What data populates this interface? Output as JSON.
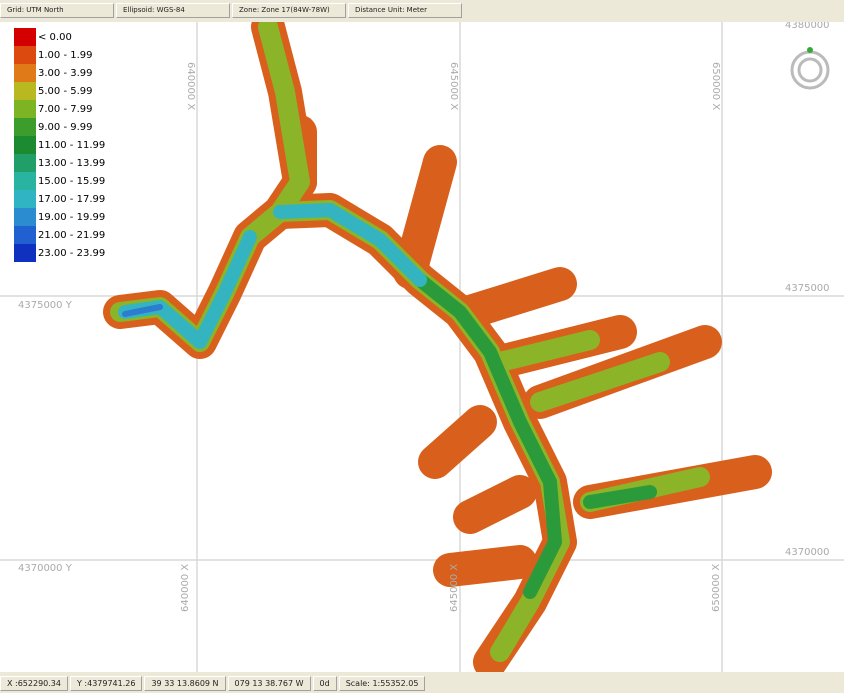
{
  "topbar": [
    "Grid: UTM North",
    "Ellipsoid: WGS-84",
    "Zone: Zone 17(84W-78W)",
    "Distance Unit: Meter"
  ],
  "legend": [
    {
      "label": "< 0.00",
      "color": "#d40000"
    },
    {
      "label": "1.00 - 1.99",
      "color": "#dc4a10"
    },
    {
      "label": "3.00 - 3.99",
      "color": "#e07a18"
    },
    {
      "label": "5.00 - 5.99",
      "color": "#b8b820"
    },
    {
      "label": "7.00 - 7.99",
      "color": "#7cb424"
    },
    {
      "label": "9.00 - 9.99",
      "color": "#3c9c2c"
    },
    {
      "label": "11.00 - 11.99",
      "color": "#1c8a30"
    },
    {
      "label": "13.00 - 13.99",
      "color": "#20a068"
    },
    {
      "label": "15.00 - 15.99",
      "color": "#28b4a0"
    },
    {
      "label": "17.00 - 17.99",
      "color": "#30b4c4"
    },
    {
      "label": "19.00 - 19.99",
      "color": "#2c8cd0"
    },
    {
      "label": "21.00 - 21.99",
      "color": "#2060d0"
    },
    {
      "label": "23.00 - 23.99",
      "color": "#1030c0"
    }
  ],
  "grid_labels": {
    "x_top": [
      "640000 X",
      "645000 X",
      "650000 X"
    ],
    "x_bottom": [
      "640000 X",
      "645000 X",
      "650000 X"
    ],
    "y_left": [
      "4375000 Y",
      "4370000 Y"
    ],
    "y_right": [
      "4380000",
      "4375000",
      "4370000"
    ]
  },
  "statusbar": [
    "X :652290.34",
    "Y :4379741.26",
    "39 33 13.8609 N",
    "079 13 38.767 W",
    "0d",
    "Scale: 1:55352.05"
  ]
}
